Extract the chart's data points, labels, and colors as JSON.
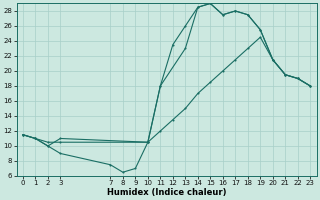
{
  "xlabel": "Humidex (Indice chaleur)",
  "bg_color": "#cce8e0",
  "grid_color": "#a8cfc8",
  "line_color": "#1a6e64",
  "line1_x": [
    0,
    1,
    2,
    3,
    10,
    11,
    13,
    14,
    15,
    16,
    17,
    18,
    19,
    20,
    21,
    22,
    23
  ],
  "line1_y": [
    11.5,
    11.0,
    10.5,
    10.5,
    10.5,
    18.0,
    23.0,
    28.5,
    29.0,
    27.5,
    28.0,
    27.5,
    25.5,
    21.5,
    19.5,
    19.0,
    18.0
  ],
  "line2_x": [
    0,
    1,
    2,
    3,
    10,
    11,
    12,
    13,
    14,
    15,
    16,
    17,
    18,
    19,
    20,
    21,
    22,
    23
  ],
  "line2_y": [
    11.5,
    11.0,
    10.0,
    11.0,
    10.5,
    12.0,
    13.5,
    15.0,
    17.0,
    18.5,
    20.0,
    21.5,
    23.0,
    24.5,
    21.5,
    19.5,
    19.0,
    18.0
  ],
  "line3_x": [
    0,
    1,
    2,
    3,
    7,
    8,
    9,
    10,
    11,
    12,
    13,
    14,
    15,
    16,
    17,
    18,
    19,
    20,
    21,
    22,
    23
  ],
  "line3_y": [
    11.5,
    11.0,
    10.0,
    9.0,
    7.5,
    6.5,
    7.0,
    10.5,
    18.0,
    23.5,
    26.0,
    28.5,
    29.0,
    27.5,
    28.0,
    27.5,
    25.5,
    21.5,
    19.5,
    19.0,
    18.0
  ],
  "ylim": [
    6,
    29
  ],
  "yticks": [
    6,
    8,
    10,
    12,
    14,
    16,
    18,
    20,
    22,
    24,
    26,
    28
  ],
  "xlim": [
    -0.5,
    23.5
  ],
  "xticks": [
    0,
    1,
    2,
    3,
    7,
    8,
    9,
    10,
    11,
    12,
    13,
    14,
    15,
    16,
    17,
    18,
    19,
    20,
    21,
    22,
    23
  ],
  "tick_fontsize": 5.0,
  "xlabel_fontsize": 6.0
}
